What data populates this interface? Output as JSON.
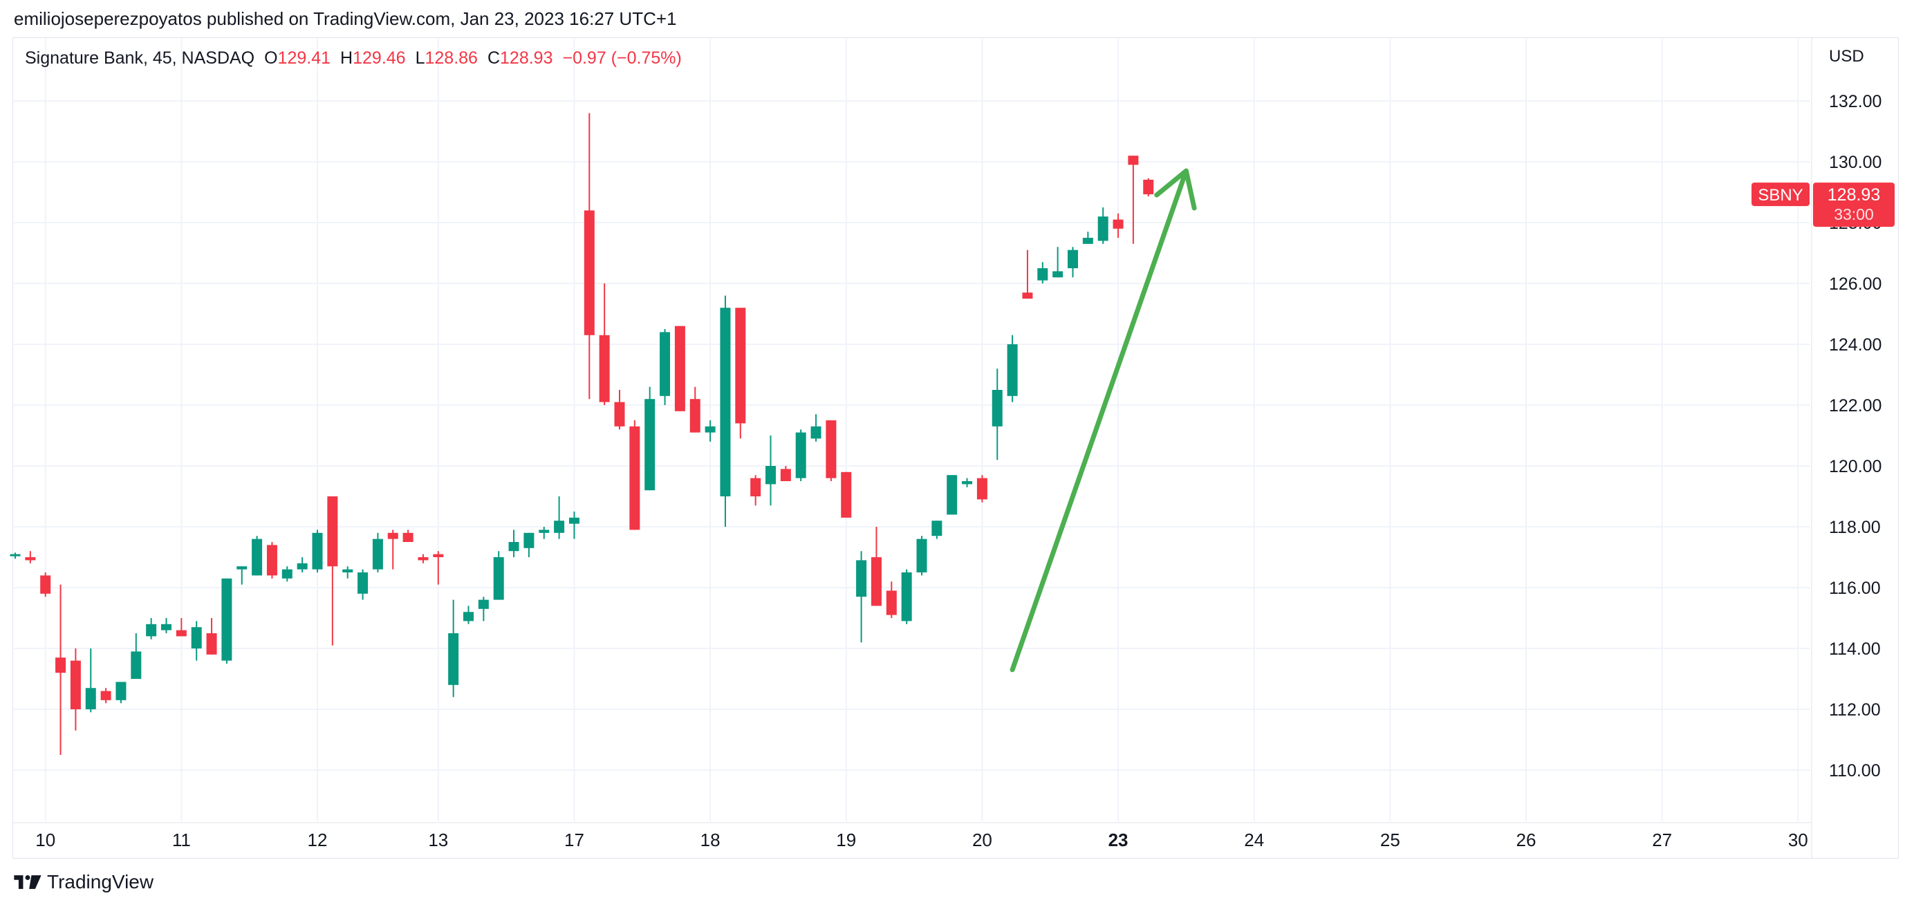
{
  "header": {
    "published_by": "emiliojoseperezpoyatos published on TradingView.com, Jan 23, 2023 16:27 UTC+1"
  },
  "legend": {
    "symbol_info": "Signature Bank, 45, NASDAQ",
    "open_label": "O",
    "open": "129.41",
    "high_label": "H",
    "high": "129.46",
    "low_label": "L",
    "low": "128.86",
    "close_label": "C",
    "close": "128.93",
    "change": "−0.97 (−0.75%)"
  },
  "price_axis": {
    "currency": "USD",
    "ticker_badge": "SBNY",
    "last_price": "128.93",
    "countdown": "33:00"
  },
  "footer": {
    "brand": "TradingView"
  },
  "colors": {
    "up": "#089981",
    "down": "#f23645",
    "arrow": "#4caf50",
    "grid": "#f0f3fa"
  },
  "chart_data": {
    "type": "candlestick",
    "ylim": [
      108.0,
      133.8
    ],
    "yticks": [
      110,
      112,
      114,
      116,
      118,
      120,
      122,
      124,
      126,
      128,
      130,
      132
    ],
    "ytick_labels": [
      "110.00",
      "112.00",
      "114.00",
      "116.00",
      "118.00",
      "120.00",
      "122.00",
      "124.00",
      "126.00",
      "128.00",
      "130.00",
      "132.00"
    ],
    "xticks": [
      {
        "label": "10",
        "bold": false
      },
      {
        "label": "11",
        "bold": false
      },
      {
        "label": "12",
        "bold": false
      },
      {
        "label": "13",
        "bold": false
      },
      {
        "label": "17",
        "bold": false
      },
      {
        "label": "18",
        "bold": false
      },
      {
        "label": "19",
        "bold": false
      },
      {
        "label": "20",
        "bold": false
      },
      {
        "label": "23",
        "bold": true
      },
      {
        "label": "24",
        "bold": false
      },
      {
        "label": "25",
        "bold": false
      },
      {
        "label": "26",
        "bold": false
      },
      {
        "label": "27",
        "bold": false
      },
      {
        "label": "30",
        "bold": false
      }
    ],
    "tick_bar_index": [
      2,
      11,
      20,
      28,
      37,
      46,
      55,
      64,
      73,
      82,
      91,
      100,
      109,
      118
    ],
    "candles": [
      {
        "o": 117.05,
        "h": 117.15,
        "l": 116.95,
        "c": 117.1
      },
      {
        "o": 117.0,
        "h": 117.2,
        "l": 116.8,
        "c": 116.9
      },
      {
        "o": 116.4,
        "h": 116.5,
        "l": 115.7,
        "c": 115.8
      },
      {
        "o": 113.7,
        "h": 116.1,
        "l": 110.5,
        "c": 113.2
      },
      {
        "o": 113.6,
        "h": 114.0,
        "l": 111.3,
        "c": 112.0
      },
      {
        "o": 112.0,
        "h": 114.0,
        "l": 111.9,
        "c": 112.7
      },
      {
        "o": 112.6,
        "h": 112.7,
        "l": 112.2,
        "c": 112.3
      },
      {
        "o": 112.3,
        "h": 112.8,
        "l": 112.2,
        "c": 112.9
      },
      {
        "o": 113.0,
        "h": 114.5,
        "l": 113.0,
        "c": 113.9
      },
      {
        "o": 114.4,
        "h": 115.0,
        "l": 114.3,
        "c": 114.8
      },
      {
        "o": 114.6,
        "h": 115.0,
        "l": 114.5,
        "c": 114.8
      },
      {
        "o": 114.6,
        "h": 115.0,
        "l": 114.5,
        "c": 114.4
      },
      {
        "o": 114.0,
        "h": 114.9,
        "l": 113.6,
        "c": 114.7
      },
      {
        "o": 114.5,
        "h": 115.0,
        "l": 113.8,
        "c": 113.8
      },
      {
        "o": 113.6,
        "h": 116.3,
        "l": 113.5,
        "c": 116.3
      },
      {
        "o": 116.6,
        "h": 116.7,
        "l": 116.1,
        "c": 116.7
      },
      {
        "o": 116.4,
        "h": 117.7,
        "l": 116.4,
        "c": 117.6
      },
      {
        "o": 117.4,
        "h": 117.5,
        "l": 116.3,
        "c": 116.4
      },
      {
        "o": 116.3,
        "h": 116.7,
        "l": 116.2,
        "c": 116.6
      },
      {
        "o": 116.6,
        "h": 117.0,
        "l": 116.5,
        "c": 116.8
      },
      {
        "o": 116.6,
        "h": 117.9,
        "l": 116.5,
        "c": 117.8
      },
      {
        "o": 119.0,
        "h": 119.0,
        "l": 114.1,
        "c": 116.7
      },
      {
        "o": 116.5,
        "h": 116.7,
        "l": 116.3,
        "c": 116.6
      },
      {
        "o": 115.8,
        "h": 116.6,
        "l": 115.6,
        "c": 116.5
      },
      {
        "o": 116.6,
        "h": 117.8,
        "l": 116.5,
        "c": 117.6
      },
      {
        "o": 117.8,
        "h": 117.9,
        "l": 116.6,
        "c": 117.6
      },
      {
        "o": 117.8,
        "h": 117.9,
        "l": 117.5,
        "c": 117.5
      },
      {
        "o": 117.0,
        "h": 117.1,
        "l": 116.8,
        "c": 116.9
      },
      {
        "o": 117.1,
        "h": 117.2,
        "l": 116.1,
        "c": 117.0
      },
      {
        "o": 112.8,
        "h": 115.6,
        "l": 112.4,
        "c": 114.5
      },
      {
        "o": 114.9,
        "h": 115.4,
        "l": 114.8,
        "c": 115.2
      },
      {
        "o": 115.3,
        "h": 115.7,
        "l": 114.9,
        "c": 115.6
      },
      {
        "o": 115.6,
        "h": 117.2,
        "l": 115.6,
        "c": 117.0
      },
      {
        "o": 117.2,
        "h": 117.9,
        "l": 117.0,
        "c": 117.5
      },
      {
        "o": 117.3,
        "h": 117.8,
        "l": 117.0,
        "c": 117.8
      },
      {
        "o": 117.8,
        "h": 118.0,
        "l": 117.6,
        "c": 117.9
      },
      {
        "o": 117.8,
        "h": 119.0,
        "l": 117.6,
        "c": 118.2
      },
      {
        "o": 118.1,
        "h": 118.5,
        "l": 117.6,
        "c": 118.3
      },
      {
        "o": 128.4,
        "h": 131.6,
        "l": 122.2,
        "c": 124.3
      },
      {
        "o": 124.3,
        "h": 126.0,
        "l": 122.0,
        "c": 122.1
      },
      {
        "o": 122.1,
        "h": 122.5,
        "l": 121.2,
        "c": 121.3
      },
      {
        "o": 121.3,
        "h": 121.5,
        "l": 117.9,
        "c": 117.9
      },
      {
        "o": 119.2,
        "h": 122.6,
        "l": 119.2,
        "c": 122.2
      },
      {
        "o": 122.3,
        "h": 124.5,
        "l": 122.0,
        "c": 124.4
      },
      {
        "o": 124.6,
        "h": 124.6,
        "l": 121.8,
        "c": 121.8
      },
      {
        "o": 122.2,
        "h": 122.6,
        "l": 121.1,
        "c": 121.1
      },
      {
        "o": 121.1,
        "h": 121.5,
        "l": 120.8,
        "c": 121.3
      },
      {
        "o": 119.0,
        "h": 125.6,
        "l": 118.0,
        "c": 125.2
      },
      {
        "o": 125.2,
        "h": 125.2,
        "l": 120.9,
        "c": 121.4
      },
      {
        "o": 119.6,
        "h": 119.7,
        "l": 118.7,
        "c": 119.0
      },
      {
        "o": 119.4,
        "h": 121.0,
        "l": 118.7,
        "c": 120.0
      },
      {
        "o": 119.9,
        "h": 120.0,
        "l": 119.5,
        "c": 119.5
      },
      {
        "o": 119.6,
        "h": 121.2,
        "l": 119.5,
        "c": 121.1
      },
      {
        "o": 120.9,
        "h": 121.7,
        "l": 120.8,
        "c": 121.3
      },
      {
        "o": 121.5,
        "h": 121.5,
        "l": 119.5,
        "c": 119.6
      },
      {
        "o": 119.8,
        "h": 119.8,
        "l": 118.3,
        "c": 118.3
      },
      {
        "o": 115.7,
        "h": 117.2,
        "l": 114.2,
        "c": 116.9
      },
      {
        "o": 117.0,
        "h": 118.0,
        "l": 115.4,
        "c": 115.4
      },
      {
        "o": 115.9,
        "h": 116.2,
        "l": 115.0,
        "c": 115.1
      },
      {
        "o": 114.9,
        "h": 116.6,
        "l": 114.8,
        "c": 116.5
      },
      {
        "o": 116.5,
        "h": 117.7,
        "l": 116.4,
        "c": 117.6
      },
      {
        "o": 117.7,
        "h": 118.2,
        "l": 117.6,
        "c": 118.2
      },
      {
        "o": 118.4,
        "h": 119.7,
        "l": 118.4,
        "c": 119.7
      },
      {
        "o": 119.4,
        "h": 119.6,
        "l": 119.3,
        "c": 119.5
      },
      {
        "o": 119.6,
        "h": 119.7,
        "l": 118.8,
        "c": 118.9
      },
      {
        "o": 121.3,
        "h": 123.2,
        "l": 120.2,
        "c": 122.5
      },
      {
        "o": 122.3,
        "h": 124.3,
        "l": 122.1,
        "c": 124.0
      },
      {
        "o": 125.7,
        "h": 127.1,
        "l": 125.5,
        "c": 125.5
      },
      {
        "o": 126.1,
        "h": 126.7,
        "l": 126.0,
        "c": 126.5
      },
      {
        "o": 126.2,
        "h": 127.2,
        "l": 126.2,
        "c": 126.4
      },
      {
        "o": 126.5,
        "h": 127.2,
        "l": 126.2,
        "c": 127.1
      },
      {
        "o": 127.3,
        "h": 127.7,
        "l": 127.3,
        "c": 127.5
      },
      {
        "o": 127.4,
        "h": 128.5,
        "l": 127.3,
        "c": 128.2
      },
      {
        "o": 128.1,
        "h": 128.3,
        "l": 127.5,
        "c": 127.8
      },
      {
        "o": 130.2,
        "h": 130.2,
        "l": 127.3,
        "c": 129.9
      },
      {
        "o": 129.41,
        "h": 129.46,
        "l": 128.86,
        "c": 128.93
      }
    ],
    "annotation_arrow": {
      "from": {
        "bar": 66,
        "y": 113.3
      },
      "to": {
        "bar": 77.5,
        "y": 129.7
      }
    }
  }
}
